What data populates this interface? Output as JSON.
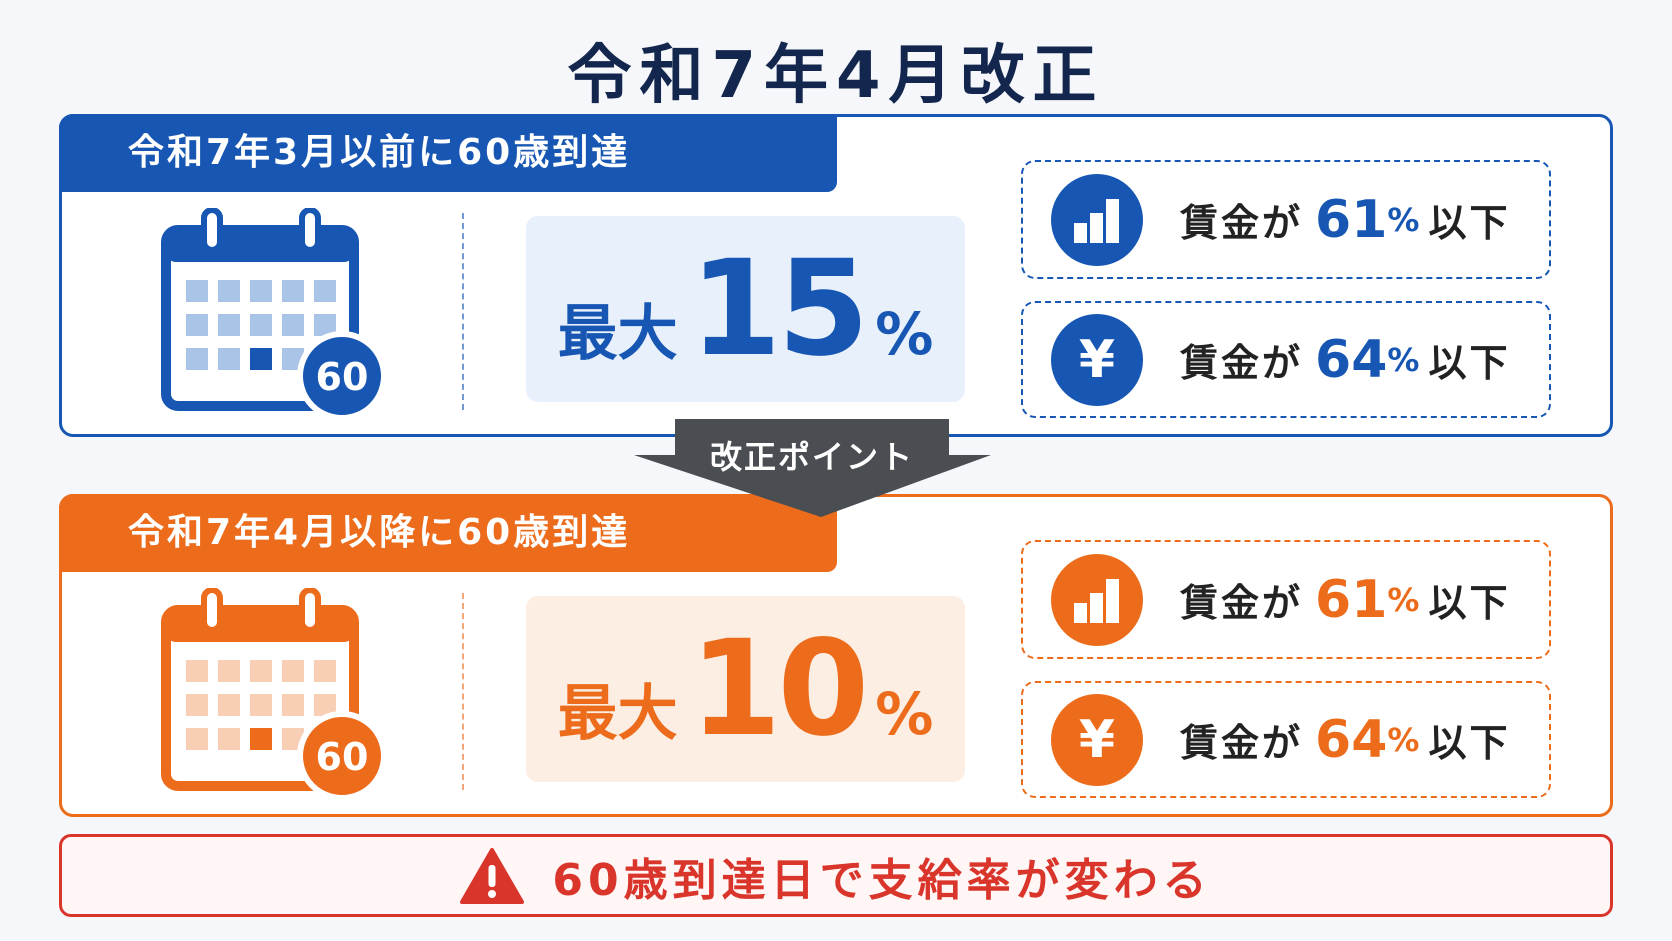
{
  "title": "令和7年4月改正",
  "panels": [
    {
      "heading": "令和7年3月以前に60歳到達",
      "calendar_badge": "60",
      "rate_prefix": "最大",
      "rate_value": "15",
      "rate_unit": "%",
      "conditions": [
        {
          "prefix": "賃金が",
          "value": "61",
          "unit": "%",
          "suffix": "以下"
        },
        {
          "icon": "¥",
          "prefix": "賃金が",
          "value": "64",
          "unit": "%",
          "suffix": "以下"
        }
      ]
    },
    {
      "heading": "令和7年4月以降に60歳到達",
      "calendar_badge": "60",
      "rate_prefix": "最大",
      "rate_value": "10",
      "rate_unit": "%",
      "conditions": [
        {
          "prefix": "賃金が",
          "value": "61",
          "unit": "%",
          "suffix": "以下"
        },
        {
          "icon": "¥",
          "prefix": "賃金が",
          "value": "64",
          "unit": "%",
          "suffix": "以下"
        }
      ]
    }
  ],
  "arrow_label": "改正ポイント",
  "notice": "60歳到達日で支給率が変わる"
}
